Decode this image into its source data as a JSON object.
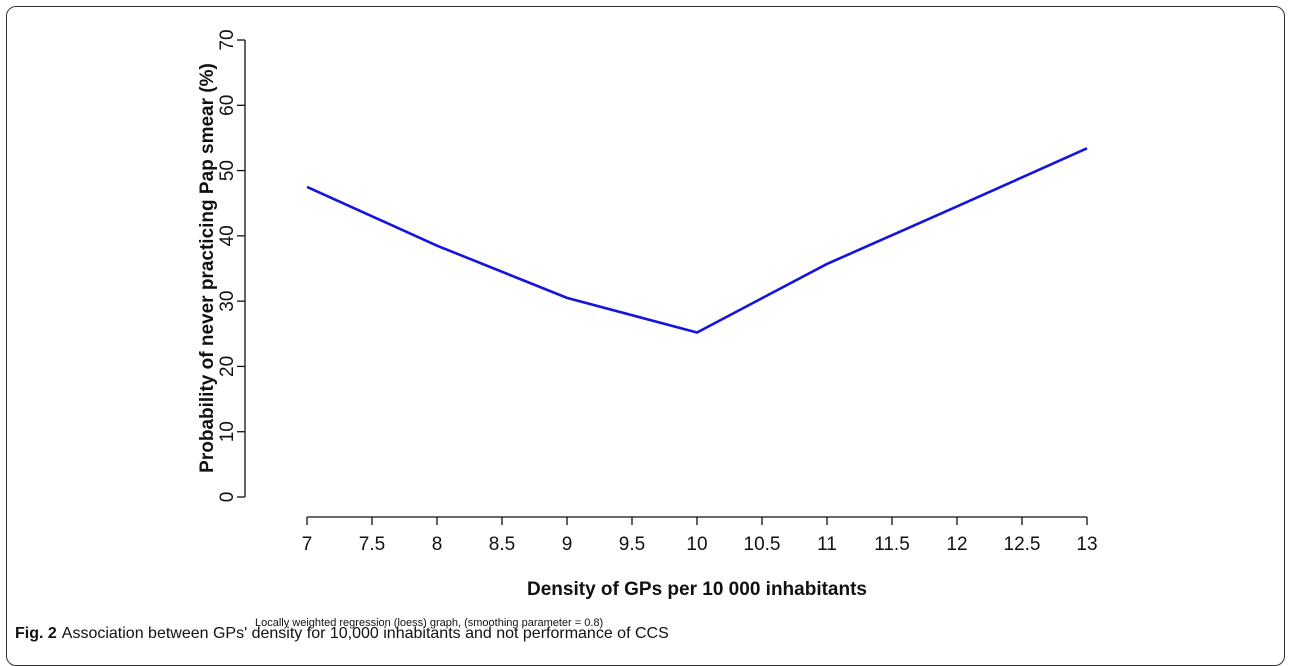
{
  "chart_data": {
    "type": "line",
    "xlabel": "Density of GPs per 10 000 inhabitants",
    "ylabel": "Probability of never practicing Pap smear (%)",
    "annotation": "Locally weighted regression (loess) graph, (smoothing parameter = 0.8)",
    "x": [
      7,
      8,
      9,
      10,
      11,
      12,
      13
    ],
    "series": [
      {
        "color": "#1414dc",
        "values": [
          47.5,
          38.5,
          30.5,
          25.2,
          35.7,
          44.5,
          53.4
        ]
      }
    ],
    "xlim": [
      7,
      13
    ],
    "xticks": [
      7,
      7.5,
      8,
      8.5,
      9,
      9.5,
      10,
      10.5,
      11,
      11.5,
      12,
      12.5,
      13
    ],
    "ylim": [
      0,
      70
    ],
    "yticks": [
      0,
      10,
      20,
      30,
      40,
      50,
      60,
      70
    ]
  },
  "figure": {
    "label": "Fig. 2",
    "caption": "Association between GPs' density for 10,000 inhabitants and not performance of CCS"
  }
}
